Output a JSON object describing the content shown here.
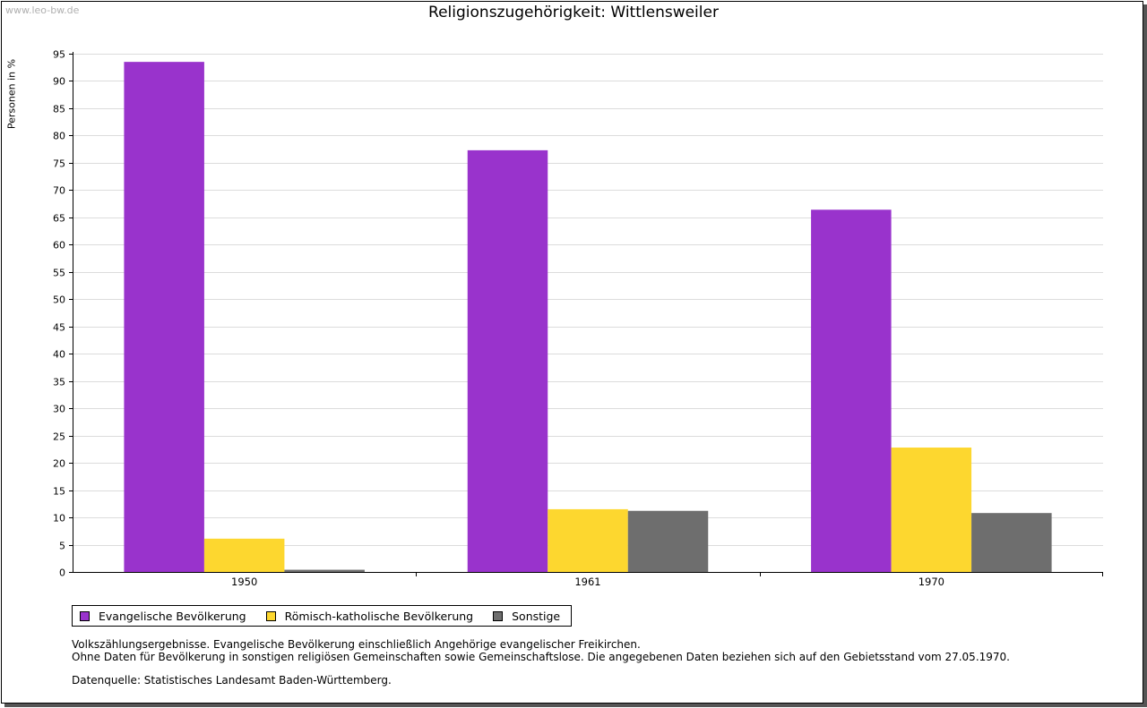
{
  "watermark": "www.leo-bw.de",
  "chart_data": {
    "type": "bar",
    "title": "Religionszugehörigkeit: Wittlensweiler",
    "xlabel": "",
    "ylabel": "Personen in %",
    "ylim": [
      0,
      95
    ],
    "ytick_step": 5,
    "grid": true,
    "categories": [
      "1950",
      "1961",
      "1970"
    ],
    "series": [
      {
        "name": "Evangelische Bevölkerung",
        "color": "#9933cc",
        "values": [
          93.5,
          77.3,
          66.4
        ]
      },
      {
        "name": "Römisch-katholische Bevölkerung",
        "color": "#fdd72f",
        "values": [
          6.1,
          11.5,
          22.8
        ]
      },
      {
        "name": "Sonstige",
        "color": "#6e6e6e",
        "values": [
          0.4,
          11.2,
          10.8
        ]
      }
    ],
    "legend_position": "bottom-left"
  },
  "notes": {
    "line1": "Volkszählungsergebnisse. Evangelische Bevölkerung einschließlich Angehörige evangelischer Freikirchen.",
    "line2": "Ohne Daten für Bevölkerung in sonstigen religiösen Gemeinschaften sowie Gemeinschaftslose. Die angegebenen Daten beziehen sich auf den Gebietsstand vom 27.05.1970.",
    "source": "Datenquelle: Statistisches Landesamt Baden-Württemberg."
  }
}
